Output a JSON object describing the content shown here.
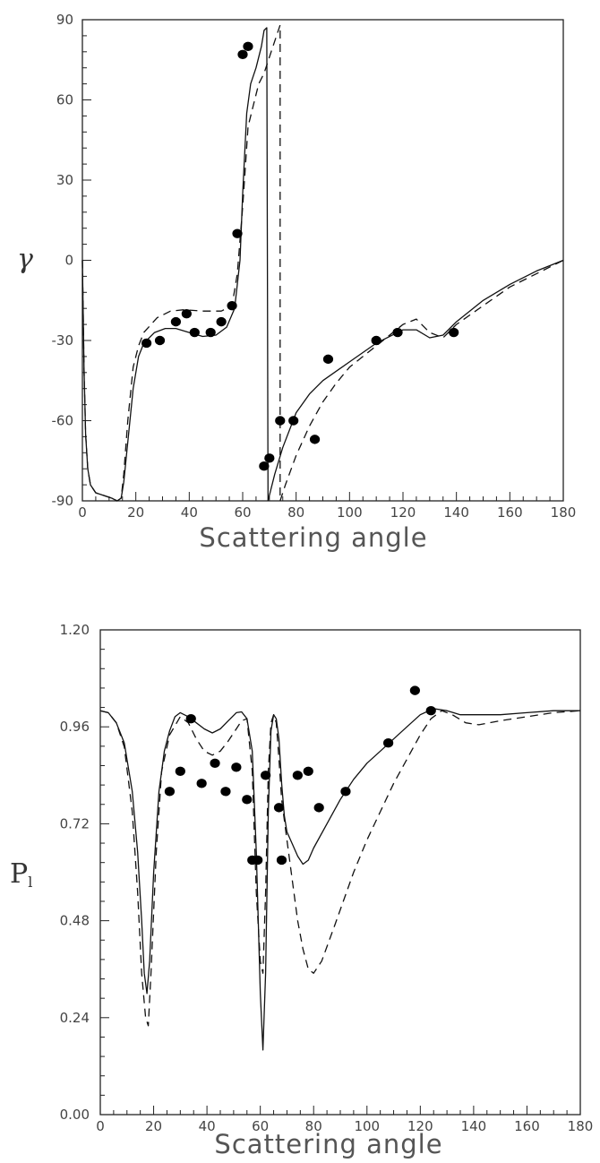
{
  "chart_data": [
    {
      "type": "line",
      "xlabel": "Scattering angle",
      "ylabel": "γ",
      "xlim": [
        0,
        180
      ],
      "ylim": [
        -90,
        90
      ],
      "xticks": [
        "0",
        "20",
        "40",
        "60",
        "80",
        "100",
        "120",
        "140",
        "160",
        "180"
      ],
      "yticks": [
        "-90",
        "-60",
        "-30",
        "0",
        "30",
        "60",
        "90"
      ],
      "grid": false,
      "series": [
        {
          "style": "solid",
          "segments": [
            [
              [
                0,
                0
              ],
              [
                0.6,
                -40
              ],
              [
                1.2,
                -65
              ],
              [
                2,
                -78
              ],
              [
                3,
                -84
              ],
              [
                5,
                -87
              ],
              [
                8,
                -88
              ],
              [
                11,
                -89
              ],
              [
                13,
                -90
              ],
              [
                14.5,
                -89
              ],
              [
                15.5,
                -83
              ],
              [
                17,
                -68
              ],
              [
                19,
                -48
              ],
              [
                21,
                -36
              ],
              [
                23,
                -31
              ],
              [
                27,
                -27
              ],
              [
                31,
                -25.5
              ],
              [
                35,
                -25.5
              ],
              [
                40,
                -27
              ],
              [
                45,
                -28.5
              ],
              [
                50,
                -28
              ],
              [
                54,
                -25
              ],
              [
                57,
                -18
              ],
              [
                59,
                0
              ],
              [
                60,
                25
              ],
              [
                61.5,
                55
              ],
              [
                63,
                66
              ],
              [
                65,
                72
              ],
              [
                67,
                80
              ],
              [
                68,
                86
              ],
              [
                69,
                87
              ],
              [
                69.5,
                -90
              ]
            ],
            [
              [
                69.5,
                -90
              ],
              [
                72,
                -80
              ],
              [
                75,
                -70
              ],
              [
                80,
                -57
              ],
              [
                85,
                -50
              ],
              [
                90,
                -45
              ],
              [
                100,
                -38
              ],
              [
                110,
                -31
              ],
              [
                120,
                -26
              ],
              [
                125,
                -26
              ],
              [
                130,
                -29
              ],
              [
                135,
                -28
              ],
              [
                140,
                -23
              ],
              [
                150,
                -15
              ],
              [
                160,
                -9
              ],
              [
                170,
                -4
              ],
              [
                180,
                0
              ]
            ]
          ]
        },
        {
          "style": "dashed",
          "segments": [
            [
              [
                0,
                0
              ],
              [
                0.6,
                -40
              ],
              [
                1.2,
                -65
              ],
              [
                2,
                -78
              ],
              [
                3,
                -84
              ],
              [
                5,
                -87
              ],
              [
                8,
                -88
              ],
              [
                11,
                -89
              ],
              [
                13,
                -90
              ],
              [
                14.5,
                -89
              ],
              [
                15.5,
                -80
              ],
              [
                17,
                -60
              ],
              [
                19,
                -40
              ],
              [
                21,
                -32
              ],
              [
                23,
                -27
              ],
              [
                28,
                -21.5
              ],
              [
                33,
                -19
              ],
              [
                38,
                -18.5
              ],
              [
                45,
                -19
              ],
              [
                52,
                -19
              ],
              [
                56,
                -17
              ],
              [
                58,
                -5
              ],
              [
                60,
                20
              ],
              [
                62,
                50
              ],
              [
                64,
                58
              ],
              [
                66,
                66
              ],
              [
                68,
                70
              ],
              [
                71,
                79
              ],
              [
                73,
                85
              ],
              [
                74,
                88
              ],
              [
                74,
                -90
              ]
            ],
            [
              [
                74,
                -90
              ],
              [
                76,
                -84
              ],
              [
                80,
                -73
              ],
              [
                85,
                -62
              ],
              [
                90,
                -53
              ],
              [
                95,
                -46
              ],
              [
                100,
                -40
              ],
              [
                110,
                -32
              ],
              [
                120,
                -24
              ],
              [
                125,
                -22
              ],
              [
                130,
                -27
              ],
              [
                135,
                -29
              ],
              [
                140,
                -24
              ],
              [
                150,
                -17
              ],
              [
                160,
                -10
              ],
              [
                170,
                -5
              ],
              [
                180,
                0
              ]
            ]
          ]
        }
      ],
      "markers": [
        [
          24,
          -31
        ],
        [
          29,
          -30
        ],
        [
          35,
          -23
        ],
        [
          39,
          -20
        ],
        [
          42,
          -27
        ],
        [
          48,
          -27
        ],
        [
          52,
          -23
        ],
        [
          56,
          -17
        ],
        [
          58,
          10
        ],
        [
          60,
          77
        ],
        [
          62,
          80
        ],
        [
          68,
          -77
        ],
        [
          70,
          -74
        ],
        [
          74,
          -60
        ],
        [
          79,
          -60
        ],
        [
          87,
          -67
        ],
        [
          92,
          -37
        ],
        [
          110,
          -30
        ],
        [
          118,
          -27
        ],
        [
          139,
          -27
        ]
      ]
    },
    {
      "type": "line",
      "xlabel": "Scattering angle",
      "ylabel": "P",
      "ylabel_sub": "l",
      "xlim": [
        0,
        180
      ],
      "ylim": [
        0,
        1.2
      ],
      "xticks": [
        "0",
        "20",
        "40",
        "60",
        "80",
        "100",
        "120",
        "140",
        "160",
        "180"
      ],
      "yticks": [
        "0.00",
        "0.24",
        "0.48",
        "0.72",
        "0.96",
        "1.20"
      ],
      "grid": false,
      "series": [
        {
          "style": "solid",
          "segments": [
            [
              [
                0,
                1.0
              ],
              [
                3,
                0.995
              ],
              [
                6,
                0.97
              ],
              [
                9,
                0.92
              ],
              [
                12,
                0.8
              ],
              [
                14,
                0.65
              ],
              [
                15.5,
                0.48
              ],
              [
                16.5,
                0.35
              ],
              [
                17.5,
                0.3
              ],
              [
                18.5,
                0.38
              ],
              [
                20,
                0.6
              ],
              [
                22,
                0.8
              ],
              [
                24,
                0.9
              ],
              [
                26,
                0.95
              ],
              [
                28,
                0.985
              ],
              [
                30,
                0.995
              ],
              [
                33,
                0.985
              ],
              [
                36,
                0.97
              ],
              [
                39,
                0.955
              ],
              [
                42,
                0.945
              ],
              [
                45,
                0.955
              ],
              [
                48,
                0.975
              ],
              [
                51,
                0.995
              ],
              [
                53,
                0.997
              ],
              [
                55,
                0.98
              ],
              [
                57,
                0.9
              ],
              [
                58.5,
                0.65
              ],
              [
                60,
                0.3
              ],
              [
                61,
                0.16
              ],
              [
                62,
                0.35
              ],
              [
                63,
                0.75
              ],
              [
                64,
                0.95
              ],
              [
                65,
                0.99
              ],
              [
                66,
                0.98
              ],
              [
                67,
                0.93
              ],
              [
                68,
                0.82
              ],
              [
                69,
                0.74
              ],
              [
                70,
                0.7
              ],
              [
                72,
                0.67
              ],
              [
                74,
                0.64
              ],
              [
                76,
                0.62
              ],
              [
                78,
                0.63
              ],
              [
                80,
                0.66
              ],
              [
                85,
                0.72
              ],
              [
                90,
                0.78
              ],
              [
                95,
                0.83
              ],
              [
                100,
                0.87
              ],
              [
                105,
                0.9
              ],
              [
                110,
                0.93
              ],
              [
                115,
                0.96
              ],
              [
                120,
                0.99
              ],
              [
                125,
                1.005
              ],
              [
                130,
                1.0
              ],
              [
                135,
                0.99
              ],
              [
                140,
                0.99
              ],
              [
                150,
                0.99
              ],
              [
                160,
                0.995
              ],
              [
                170,
                1.0
              ],
              [
                180,
                1.0
              ]
            ]
          ]
        },
        {
          "style": "dashed",
          "segments": [
            [
              [
                0,
                1.0
              ],
              [
                3,
                0.995
              ],
              [
                6,
                0.97
              ],
              [
                9,
                0.91
              ],
              [
                12,
                0.75
              ],
              [
                14,
                0.55
              ],
              [
                15.5,
                0.35
              ],
              [
                17,
                0.24
              ],
              [
                18,
                0.22
              ],
              [
                19,
                0.35
              ],
              [
                21,
                0.65
              ],
              [
                23,
                0.85
              ],
              [
                26,
                0.94
              ],
              [
                30,
                0.985
              ],
              [
                33,
                0.97
              ],
              [
                36,
                0.93
              ],
              [
                39,
                0.9
              ],
              [
                42,
                0.89
              ],
              [
                45,
                0.9
              ],
              [
                48,
                0.925
              ],
              [
                51,
                0.955
              ],
              [
                53,
                0.975
              ],
              [
                55,
                0.98
              ],
              [
                57,
                0.85
              ],
              [
                58.5,
                0.55
              ],
              [
                60,
                0.38
              ],
              [
                61,
                0.35
              ],
              [
                62,
                0.55
              ],
              [
                63,
                0.85
              ],
              [
                64,
                0.97
              ],
              [
                65,
                0.99
              ],
              [
                66,
                0.97
              ],
              [
                67,
                0.88
              ],
              [
                68,
                0.78
              ],
              [
                70,
                0.68
              ],
              [
                72,
                0.58
              ],
              [
                74,
                0.48
              ],
              [
                76,
                0.41
              ],
              [
                78,
                0.36
              ],
              [
                80,
                0.35
              ],
              [
                83,
                0.38
              ],
              [
                88,
                0.47
              ],
              [
                95,
                0.6
              ],
              [
                100,
                0.68
              ],
              [
                105,
                0.75
              ],
              [
                110,
                0.82
              ],
              [
                115,
                0.88
              ],
              [
                120,
                0.94
              ],
              [
                124,
                0.98
              ],
              [
                128,
                1.0
              ],
              [
                132,
                0.99
              ],
              [
                137,
                0.97
              ],
              [
                142,
                0.965
              ],
              [
                150,
                0.975
              ],
              [
                160,
                0.985
              ],
              [
                170,
                0.995
              ],
              [
                180,
                1.0
              ]
            ]
          ]
        }
      ],
      "markers": [
        [
          26,
          0.8
        ],
        [
          30,
          0.85
        ],
        [
          34,
          0.98
        ],
        [
          38,
          0.82
        ],
        [
          43,
          0.87
        ],
        [
          47,
          0.8
        ],
        [
          51,
          0.86
        ],
        [
          55,
          0.78
        ],
        [
          57,
          0.63
        ],
        [
          59,
          0.63
        ],
        [
          62,
          0.84
        ],
        [
          67,
          0.76
        ],
        [
          68,
          0.63
        ],
        [
          74,
          0.84
        ],
        [
          78,
          0.85
        ],
        [
          82,
          0.76
        ],
        [
          92,
          0.8
        ],
        [
          108,
          0.92
        ],
        [
          118,
          1.05
        ],
        [
          124,
          1.0
        ]
      ]
    }
  ]
}
